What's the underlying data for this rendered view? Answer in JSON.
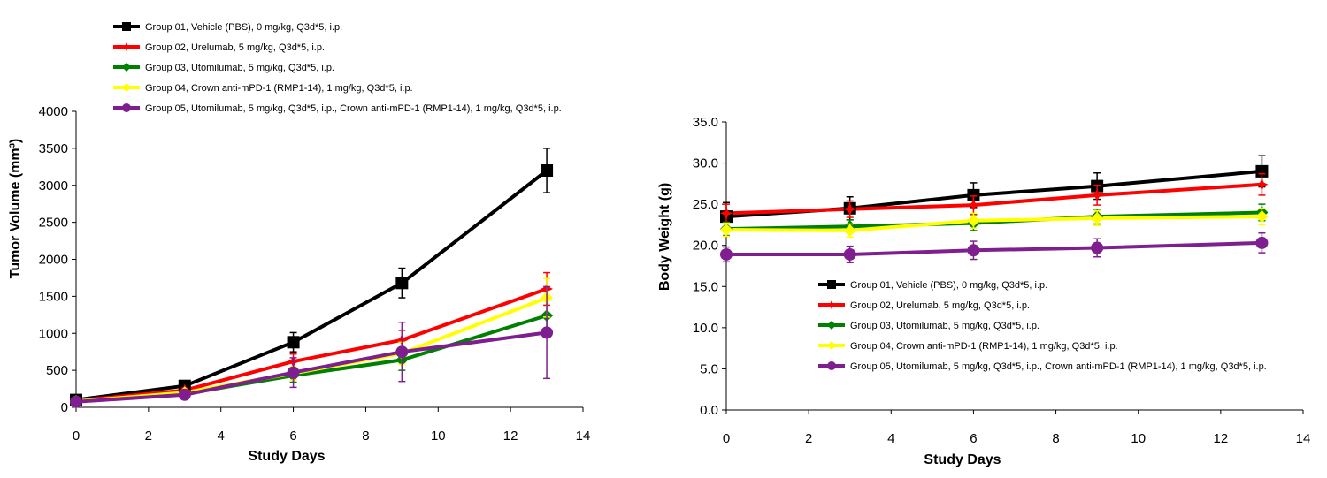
{
  "chart_data": [
    {
      "type": "line",
      "xlabel": "Study Days",
      "ylabel": "Tumor Volume (mm³)",
      "xlim": [
        0,
        14
      ],
      "ylim": [
        0,
        4000
      ],
      "xticks": [
        0,
        2,
        4,
        6,
        8,
        10,
        12,
        14
      ],
      "yticks": [
        0,
        500,
        1000,
        1500,
        2000,
        2500,
        3000,
        3500,
        4000
      ],
      "x": [
        0,
        3,
        6,
        9,
        13
      ],
      "legend_position": "top",
      "series": [
        {
          "name": "Group 01, Vehicle  (PBS), 0 mg/kg, Q3d*5, i.p.",
          "color": "#000000",
          "marker": "square",
          "values": [
            100,
            290,
            880,
            1680,
            3200
          ],
          "errors": [
            20,
            40,
            130,
            200,
            300
          ]
        },
        {
          "name": "Group 02, Urelumab, 5 mg/kg, Q3d*5, i.p.",
          "color": "#ff0000",
          "marker": "star",
          "values": [
            90,
            230,
            620,
            910,
            1600
          ],
          "errors": [
            20,
            30,
            100,
            130,
            220
          ]
        },
        {
          "name": "Group 03, Utomilumab, 5 mg/kg, Q3d*5, i.p.",
          "color": "#008000",
          "marker": "diamond",
          "values": [
            85,
            180,
            430,
            640,
            1240
          ],
          "errors": [
            15,
            30,
            90,
            140,
            250
          ]
        },
        {
          "name": "Group 04, Crown anti-mPD-1 (RMP1-14), 1 mg/kg, Q3d*5, i.p.",
          "color": "#ffff00",
          "marker": "diamond",
          "values": [
            80,
            200,
            460,
            730,
            1480
          ],
          "errors": [
            15,
            30,
            90,
            150,
            260
          ]
        },
        {
          "name": "Group 05, Utomilumab, 5 mg/kg, Q3d*5, i.p., Crown anti-mPD-1 (RMP1-14), 1 mg/kg, Q3d*5, i.p.",
          "color": "#7f1f8f",
          "marker": "circle",
          "values": [
            75,
            170,
            470,
            750,
            1010
          ],
          "errors": [
            15,
            30,
            200,
            400,
            620
          ]
        }
      ]
    },
    {
      "type": "line",
      "xlabel": "Study Days",
      "ylabel": "Body Weight (g)",
      "xlim": [
        0,
        14
      ],
      "ylim": [
        0,
        35
      ],
      "xticks": [
        0,
        2,
        4,
        6,
        8,
        10,
        12,
        14
      ],
      "yticks": [
        "0.0",
        "5.0",
        "10.0",
        "15.0",
        "20.0",
        "25.0",
        "30.0",
        "35.0"
      ],
      "x": [
        0,
        3,
        6,
        9,
        13
      ],
      "legend_position": "bottom-center",
      "series": [
        {
          "name": "Group 01, Vehicle  (PBS), 0 mg/kg, Q3d*5, i.p.",
          "color": "#000000",
          "marker": "square",
          "values": [
            23.5,
            24.5,
            26.1,
            27.2,
            29.0
          ],
          "errors": [
            1.7,
            1.4,
            1.5,
            1.6,
            1.9
          ]
        },
        {
          "name": "Group 02, Urelumab, 5 mg/kg, Q3d*5, i.p.",
          "color": "#ff0000",
          "marker": "star",
          "values": [
            23.9,
            24.4,
            24.9,
            26.1,
            27.4
          ],
          "errors": [
            1.1,
            1.0,
            1.1,
            1.2,
            1.3
          ]
        },
        {
          "name": "Group 03, Utomilumab, 5 mg/kg, Q3d*5, i.p.",
          "color": "#008000",
          "marker": "diamond",
          "values": [
            22.0,
            22.3,
            22.7,
            23.5,
            24.0
          ],
          "errors": [
            0.8,
            0.8,
            0.9,
            0.9,
            1.0
          ]
        },
        {
          "name": "Group 04, Crown anti-mPD-1 (RMP1-14), 1 mg/kg, Q3d*5, i.p.",
          "color": "#ffff00",
          "marker": "diamond",
          "values": [
            21.9,
            21.8,
            23.0,
            23.3,
            23.5
          ],
          "errors": [
            0.8,
            0.8,
            0.9,
            0.9,
            1.0
          ]
        },
        {
          "name": "Group 05, Utomilumab, 5 mg/kg, Q3d*5, i.p., Crown anti-mPD-1 (RMP1-14), 1 mg/kg, Q3d*5, i.p.",
          "color": "#7f1f8f",
          "marker": "circle",
          "values": [
            18.9,
            18.9,
            19.4,
            19.7,
            20.3
          ],
          "errors": [
            0.9,
            1.0,
            1.1,
            1.1,
            1.2
          ]
        }
      ]
    }
  ]
}
